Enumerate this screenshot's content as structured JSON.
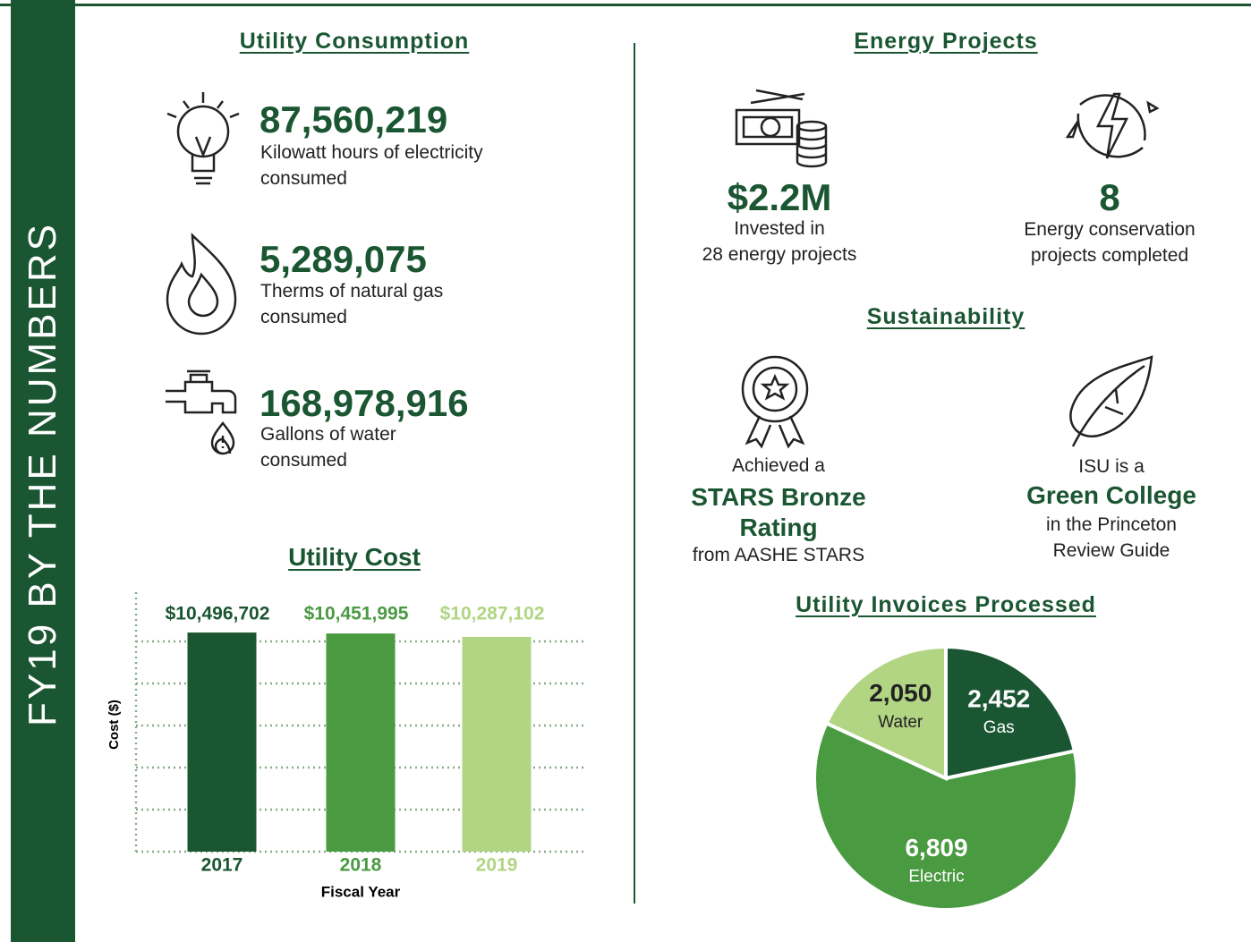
{
  "sidebar_title": "FY19 BY THE NUMBERS",
  "utility_consumption": {
    "title": "Utility Consumption",
    "items": [
      {
        "value": "87,560,219",
        "lines": [
          "Kilowatt hours of electricity",
          "consumed"
        ]
      },
      {
        "value": "5,289,075",
        "lines": [
          "Therms of natural gas",
          "consumed"
        ]
      },
      {
        "value": "168,978,916",
        "lines": [
          "Gallons of water",
          "consumed"
        ]
      }
    ]
  },
  "energy_projects": {
    "title": "Energy Projects",
    "items": [
      {
        "value": "$2.2M",
        "lines": [
          "Invested in",
          "28 energy projects"
        ]
      },
      {
        "value": "8",
        "lines": [
          "Energy conservation",
          "projects completed"
        ]
      }
    ]
  },
  "sustainability": {
    "title": "Sustainability",
    "items": [
      {
        "before": "Achieved a",
        "highlight": [
          "STARS Bronze",
          "Rating"
        ],
        "after": [
          "from AASHE STARS"
        ]
      },
      {
        "before": "ISU is a",
        "highlight": [
          "Green College"
        ],
        "after": [
          "in the Princeton",
          "Review Guide"
        ]
      }
    ]
  },
  "chart_data": [
    {
      "type": "bar",
      "title": "Utility Cost",
      "x_label": "Fiscal Year",
      "y_label": "Cost ($)",
      "categories": [
        "2017",
        "2018",
        "2019"
      ],
      "values": [
        10496702,
        10451995,
        10287102
      ],
      "value_labels": [
        "$10,496,702",
        "$10,451,995",
        "$10,287,102"
      ],
      "colors": [
        "#1b5632",
        "#4a9a42",
        "#b1d583"
      ],
      "ylim": [
        0,
        10500000
      ],
      "grid": true
    },
    {
      "type": "pie",
      "title": "Utility Invoices Processed",
      "categories": [
        "Gas",
        "Electric",
        "Water"
      ],
      "values": [
        2452,
        6809,
        2050
      ],
      "value_labels": [
        "2,452",
        "6,809",
        "2,050"
      ],
      "colors": [
        "#1b5632",
        "#4a9a42",
        "#b1d583"
      ]
    }
  ]
}
